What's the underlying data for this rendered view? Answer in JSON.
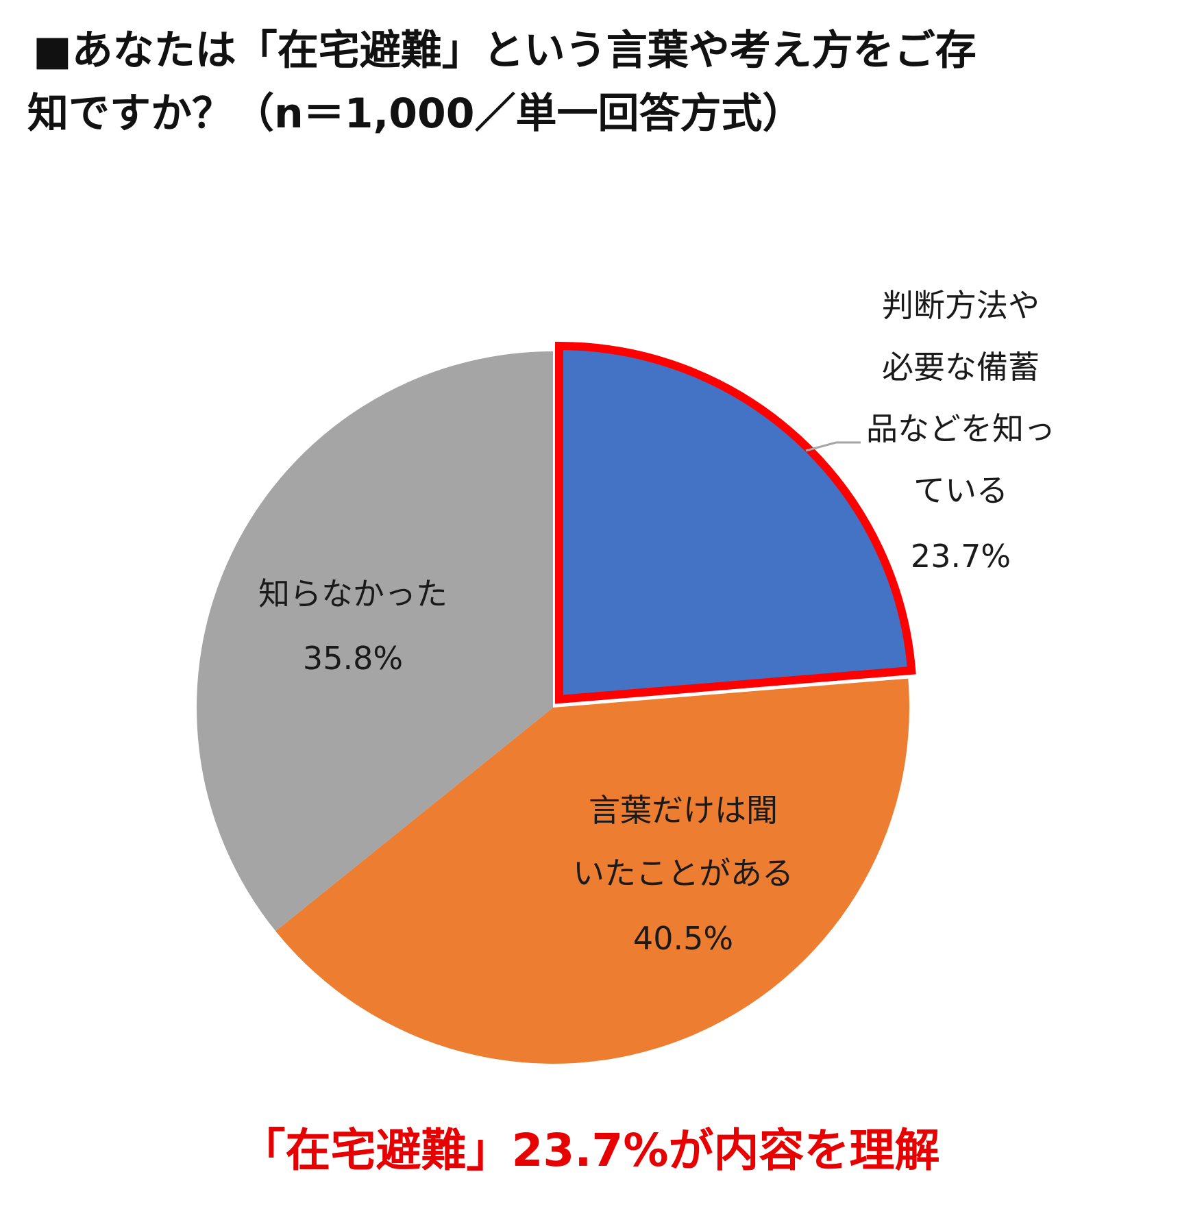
{
  "title": {
    "line1": "■あなたは「在宅避難」という言葉や考え方をご存",
    "line2": "知ですか？（n＝1,000／単一回答方式）"
  },
  "chart_data": {
    "type": "pie",
    "start_angle_deg": 0,
    "direction": "clockwise",
    "slices": [
      {
        "label_lines": [
          "判断方法や",
          "必要な備蓄",
          "品などを知っ",
          "ている"
        ],
        "value": 23.7,
        "value_label": "23.7%",
        "color": "#4472C4",
        "highlight_color": "#FF0000",
        "exploded": true
      },
      {
        "label_lines": [
          "言葉だけは聞",
          "いたことがある"
        ],
        "value": 40.5,
        "value_label": "40.5%",
        "color": "#ED7D31"
      },
      {
        "label_lines": [
          "知らなかった"
        ],
        "value": 35.8,
        "value_label": "35.8%",
        "color": "#A5A5A5"
      }
    ],
    "leader_line_color": "#A5A5A5"
  },
  "footer": {
    "text": "「在宅避難」23.7%が内容を理解"
  }
}
